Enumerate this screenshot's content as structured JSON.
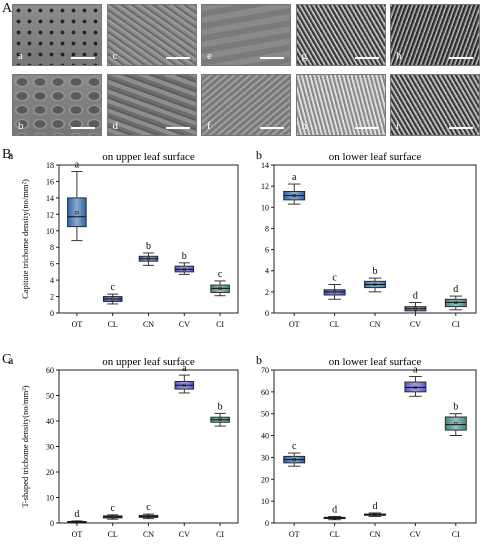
{
  "panel_labels": {
    "A": "A",
    "B": "B",
    "C": "C"
  },
  "sem_panels": [
    {
      "label": "a",
      "texture": "dotted"
    },
    {
      "label": "c",
      "texture": "fibrous"
    },
    {
      "label": "e",
      "texture": "smooth"
    },
    {
      "label": "g",
      "texture": "dense"
    },
    {
      "label": "h",
      "texture": "dense-dark"
    },
    {
      "label": "b",
      "texture": "cells"
    },
    {
      "label": "d",
      "texture": "wavy"
    },
    {
      "label": "f",
      "texture": "fibrous-light"
    },
    {
      "label": "h",
      "texture": "bright-fibers"
    },
    {
      "label": "i",
      "texture": "dense"
    }
  ],
  "colors": {
    "OT": "#2e62a6",
    "CL": "#3b48b8",
    "CN": "#3b6fb0",
    "CV": "#5a55c4",
    "CI": "#3f8a86"
  },
  "chart_data": [
    {
      "id": "Ba",
      "panel": "a",
      "type": "box",
      "title": "on upper leaf surface",
      "ylabel": "Capitate trichome density(no/mm²)",
      "ylim": [
        0,
        18
      ],
      "yticks": [
        0,
        2,
        4,
        6,
        8,
        10,
        12,
        14,
        16,
        18
      ],
      "categories": [
        "OT",
        "CL",
        "CN",
        "CV",
        "CI"
      ],
      "boxes": [
        {
          "min": 8.8,
          "q1": 10.5,
          "median": 11.7,
          "q3": 14.0,
          "max": 17.2,
          "mean": 12.2,
          "letter": "a"
        },
        {
          "min": 1.1,
          "q1": 1.4,
          "median": 1.7,
          "q3": 2.0,
          "max": 2.3,
          "mean": 1.7,
          "letter": "c"
        },
        {
          "min": 5.8,
          "q1": 6.3,
          "median": 6.6,
          "q3": 6.9,
          "max": 7.3,
          "mean": 6.6,
          "letter": "b"
        },
        {
          "min": 4.7,
          "q1": 5.0,
          "median": 5.3,
          "q3": 5.7,
          "max": 6.1,
          "mean": 5.3,
          "letter": "b"
        },
        {
          "min": 2.1,
          "q1": 2.5,
          "median": 3.0,
          "q3": 3.4,
          "max": 3.9,
          "mean": 3.0,
          "letter": "c"
        }
      ]
    },
    {
      "id": "Bb",
      "panel": "b",
      "type": "box",
      "title": "on lower leaf surface",
      "ylabel": "",
      "ylim": [
        0,
        14
      ],
      "yticks": [
        0,
        2,
        4,
        6,
        8,
        10,
        12,
        14
      ],
      "categories": [
        "OT",
        "CL",
        "CN",
        "CV",
        "CI"
      ],
      "boxes": [
        {
          "min": 10.3,
          "q1": 10.7,
          "median": 11.1,
          "q3": 11.5,
          "max": 12.2,
          "mean": 11.1,
          "letter": "a"
        },
        {
          "min": 1.3,
          "q1": 1.7,
          "median": 2.0,
          "q3": 2.2,
          "max": 2.7,
          "mean": 2.0,
          "letter": "c"
        },
        {
          "min": 2.0,
          "q1": 2.4,
          "median": 2.7,
          "q3": 3.0,
          "max": 3.3,
          "mean": 2.7,
          "letter": "b"
        },
        {
          "min": 0.0,
          "q1": 0.2,
          "median": 0.4,
          "q3": 0.6,
          "max": 1.0,
          "mean": 0.4,
          "letter": "d"
        },
        {
          "min": 0.3,
          "q1": 0.6,
          "median": 1.0,
          "q3": 1.3,
          "max": 1.6,
          "mean": 1.0,
          "letter": "d"
        }
      ]
    },
    {
      "id": "Ca",
      "panel": "a",
      "type": "box",
      "title": "on upper leaf surface",
      "ylabel": "T-shaped trichome density(no/mm²)",
      "ylim": [
        0,
        60
      ],
      "yticks": [
        0,
        10,
        20,
        30,
        40,
        50,
        60
      ],
      "categories": [
        "OT",
        "CL",
        "CN",
        "CV",
        "CI"
      ],
      "boxes": [
        {
          "min": 0.0,
          "q1": 0.2,
          "median": 0.4,
          "q3": 0.6,
          "max": 0.8,
          "mean": 0.4,
          "letter": "d"
        },
        {
          "min": 1.5,
          "q1": 2.0,
          "median": 2.4,
          "q3": 2.8,
          "max": 3.2,
          "mean": 2.4,
          "letter": "c"
        },
        {
          "min": 1.7,
          "q1": 2.2,
          "median": 2.6,
          "q3": 3.0,
          "max": 3.5,
          "mean": 2.6,
          "letter": "c"
        },
        {
          "min": 51.0,
          "q1": 52.5,
          "median": 54.0,
          "q3": 55.5,
          "max": 58.0,
          "mean": 54.0,
          "letter": "a"
        },
        {
          "min": 38.0,
          "q1": 39.5,
          "median": 40.5,
          "q3": 41.5,
          "max": 43.0,
          "mean": 40.6,
          "letter": "b"
        }
      ]
    },
    {
      "id": "Cb",
      "panel": "b",
      "type": "box",
      "title": "on lower leaf surface",
      "ylabel": "",
      "ylim": [
        0,
        70
      ],
      "yticks": [
        0,
        10,
        20,
        30,
        40,
        50,
        60,
        70
      ],
      "categories": [
        "OT",
        "CL",
        "CN",
        "CV",
        "CI"
      ],
      "boxes": [
        {
          "min": 26.0,
          "q1": 27.5,
          "median": 29.0,
          "q3": 30.5,
          "max": 32.0,
          "mean": 29.0,
          "letter": "c"
        },
        {
          "min": 1.5,
          "q1": 2.0,
          "median": 2.3,
          "q3": 2.6,
          "max": 3.0,
          "mean": 2.3,
          "letter": "d"
        },
        {
          "min": 3.0,
          "q1": 3.5,
          "median": 3.8,
          "q3": 4.1,
          "max": 4.6,
          "mean": 3.8,
          "letter": "d"
        },
        {
          "min": 58.0,
          "q1": 60.0,
          "median": 62.0,
          "q3": 64.5,
          "max": 67.0,
          "mean": 62.0,
          "letter": "a"
        },
        {
          "min": 40.0,
          "q1": 42.5,
          "median": 45.0,
          "q3": 48.5,
          "max": 50.0,
          "mean": 45.5,
          "letter": "b"
        }
      ]
    }
  ]
}
